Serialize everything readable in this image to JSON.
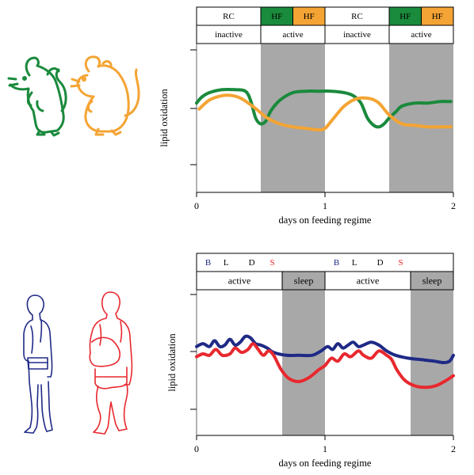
{
  "colors": {
    "green": "#1a8a3c",
    "orange": "#f4a434",
    "blue": "#1f2a86",
    "red": "#e8282e",
    "shade": "#a8a8a8",
    "black": "#000000"
  },
  "icons": {
    "top": [
      "lean-mouse-icon",
      "obese-mouse-icon"
    ],
    "bottom": [
      "lean-human-icon",
      "obese-human-icon"
    ]
  },
  "top_panel": {
    "header_row1": [
      {
        "label": "RC",
        "fill": "#ffffff",
        "text_color": "#000000"
      },
      {
        "label": "HF",
        "fill": "#1a8a3c",
        "text_color": "#000000"
      },
      {
        "label": "HF",
        "fill": "#f4a434",
        "text_color": "#000000"
      },
      {
        "label": "RC",
        "fill": "#ffffff",
        "text_color": "#000000"
      },
      {
        "label": "HF",
        "fill": "#1a8a3c",
        "text_color": "#000000"
      },
      {
        "label": "HF",
        "fill": "#f4a434",
        "text_color": "#000000"
      }
    ],
    "header_row2": [
      "inactive",
      "active",
      "inactive",
      "active"
    ],
    "ylabel": "lipid oxidation",
    "xlabel": "days on feeding regime",
    "x_ticks": [
      "0",
      "1",
      "2"
    ]
  },
  "bottom_panel": {
    "legend": [
      {
        "label": "B",
        "color": "#1f2a86"
      },
      {
        "label": "L",
        "color": "#000000"
      },
      {
        "label": "D",
        "color": "#000000"
      },
      {
        "label": "S",
        "color": "#e8282e"
      },
      {
        "label": "B",
        "color": "#1f2a86"
      },
      {
        "label": "L",
        "color": "#000000"
      },
      {
        "label": "D",
        "color": "#000000"
      },
      {
        "label": "S",
        "color": "#e8282e"
      }
    ],
    "header_row2": [
      "active",
      "sleep",
      "active",
      "sleep"
    ],
    "ylabel": "lipid oxidation",
    "xlabel": "days on feeding regime",
    "x_ticks": [
      "0",
      "1",
      "2"
    ]
  },
  "chart_data": [
    {
      "type": "line",
      "xlabel": "days on feeding regime",
      "ylabel": "lipid oxidation",
      "xlim": [
        0,
        2
      ],
      "ylim": [
        0,
        1
      ],
      "shaded_intervals": [
        [
          0.5,
          1.0
        ],
        [
          1.5,
          2.0
        ]
      ],
      "series": [
        {
          "color": "#1a8a3c",
          "x": [
            0.0,
            0.04,
            0.1,
            0.2,
            0.3,
            0.38,
            0.42,
            0.46,
            0.5,
            0.54,
            0.58,
            0.65,
            0.75,
            0.85,
            0.95,
            1.05,
            1.15,
            1.22,
            1.28,
            1.33,
            1.38,
            1.42,
            1.46,
            1.5,
            1.55,
            1.6,
            1.7,
            1.8,
            1.9,
            1.98
          ],
          "y": [
            0.6,
            0.64,
            0.67,
            0.69,
            0.69,
            0.68,
            0.62,
            0.5,
            0.46,
            0.48,
            0.55,
            0.62,
            0.67,
            0.68,
            0.68,
            0.68,
            0.67,
            0.65,
            0.6,
            0.5,
            0.45,
            0.44,
            0.46,
            0.5,
            0.54,
            0.58,
            0.6,
            0.6,
            0.61,
            0.61
          ]
        },
        {
          "color": "#f4a434",
          "x": [
            0.02,
            0.1,
            0.2,
            0.28,
            0.35,
            0.45,
            0.55,
            0.65,
            0.75,
            0.85,
            0.95,
            1.0,
            1.05,
            1.15,
            1.25,
            1.35,
            1.42,
            1.5,
            1.6,
            1.7,
            1.8,
            1.9,
            1.98
          ],
          "y": [
            0.56,
            0.62,
            0.65,
            0.65,
            0.63,
            0.57,
            0.5,
            0.46,
            0.44,
            0.43,
            0.42,
            0.43,
            0.48,
            0.58,
            0.63,
            0.63,
            0.6,
            0.52,
            0.46,
            0.45,
            0.44,
            0.44,
            0.44
          ]
        }
      ]
    },
    {
      "type": "line",
      "xlabel": "days on feeding regime",
      "ylabel": "lipid oxidation",
      "xlim": [
        0,
        2
      ],
      "ylim": [
        0,
        1
      ],
      "shaded_intervals": [
        [
          0.667,
          1.0
        ],
        [
          1.667,
          2.0
        ]
      ],
      "series": [
        {
          "color": "#1f2a86",
          "x": [
            0.0,
            0.05,
            0.1,
            0.14,
            0.18,
            0.22,
            0.26,
            0.3,
            0.34,
            0.38,
            0.42,
            0.46,
            0.5,
            0.55,
            0.6,
            0.7,
            0.8,
            0.9,
            0.97,
            1.02,
            1.06,
            1.1,
            1.14,
            1.18,
            1.22,
            1.26,
            1.3,
            1.36,
            1.42,
            1.48,
            1.55,
            1.65,
            1.75,
            1.85,
            1.92,
            1.97,
            2.0
          ],
          "y": [
            0.61,
            0.63,
            0.61,
            0.65,
            0.61,
            0.62,
            0.66,
            0.62,
            0.64,
            0.68,
            0.67,
            0.63,
            0.62,
            0.6,
            0.57,
            0.55,
            0.55,
            0.55,
            0.58,
            0.61,
            0.59,
            0.63,
            0.6,
            0.62,
            0.64,
            0.61,
            0.62,
            0.64,
            0.62,
            0.58,
            0.55,
            0.53,
            0.52,
            0.51,
            0.5,
            0.51,
            0.55
          ]
        },
        {
          "color": "#e8282e",
          "x": [
            0.0,
            0.05,
            0.1,
            0.15,
            0.2,
            0.26,
            0.3,
            0.35,
            0.4,
            0.44,
            0.48,
            0.52,
            0.56,
            0.6,
            0.66,
            0.72,
            0.8,
            0.88,
            0.95,
            1.0,
            1.05,
            1.1,
            1.15,
            1.2,
            1.26,
            1.3,
            1.36,
            1.42,
            1.48,
            1.52,
            1.56,
            1.62,
            1.7,
            1.78,
            1.86,
            1.93,
            2.0
          ],
          "y": [
            0.54,
            0.56,
            0.55,
            0.59,
            0.55,
            0.56,
            0.6,
            0.57,
            0.59,
            0.63,
            0.59,
            0.55,
            0.58,
            0.55,
            0.45,
            0.39,
            0.37,
            0.4,
            0.45,
            0.48,
            0.53,
            0.51,
            0.56,
            0.54,
            0.58,
            0.55,
            0.53,
            0.58,
            0.55,
            0.52,
            0.45,
            0.38,
            0.34,
            0.33,
            0.34,
            0.37,
            0.41
          ]
        }
      ]
    }
  ]
}
